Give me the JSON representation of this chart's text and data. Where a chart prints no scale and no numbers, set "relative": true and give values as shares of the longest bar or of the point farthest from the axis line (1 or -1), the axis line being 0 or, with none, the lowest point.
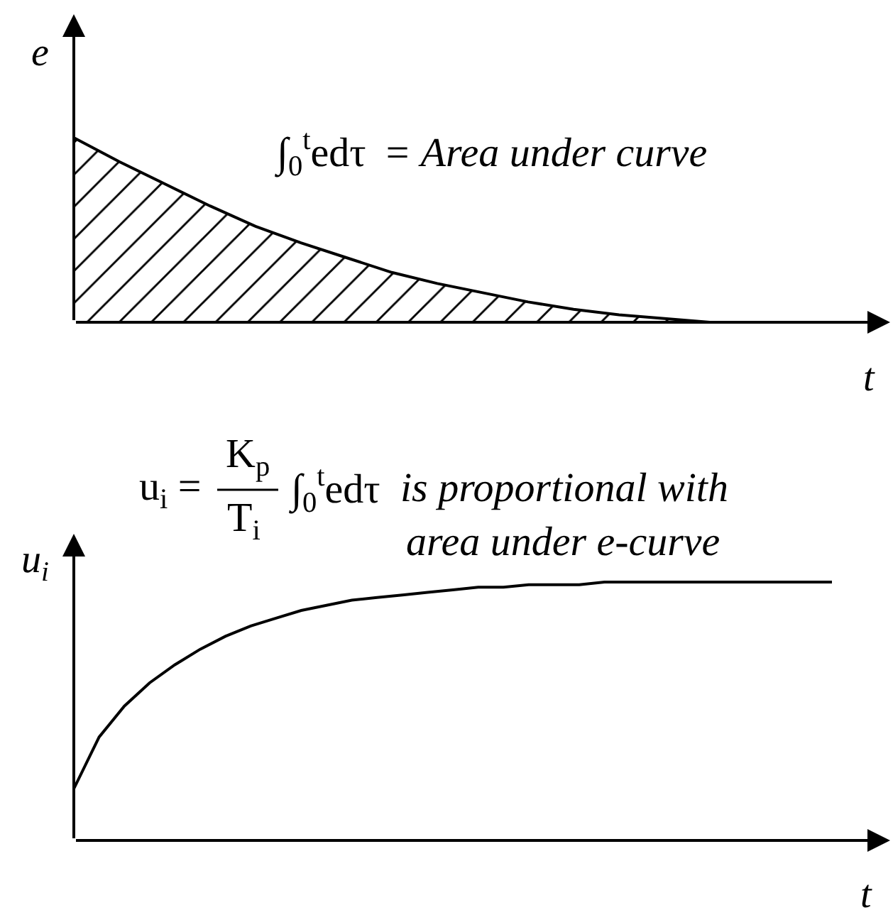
{
  "chart_data": [
    {
      "type": "area",
      "categories": [
        null,
        null,
        null,
        null,
        null,
        null,
        null,
        null,
        null,
        null,
        null,
        null,
        null,
        null,
        null,
        null,
        null
      ],
      "values": [
        1,
        0.87,
        0.75,
        0.63,
        0.52,
        0.43,
        0.35,
        0.27,
        0.21,
        0.16,
        0.11,
        0.07,
        0.04,
        0.02,
        0,
        0,
        0
      ],
      "color": "#000000",
      "relative": true,
      "xlabel": "t",
      "ylabel": "e",
      "annotations": [
        "∫$_{0}$$^{t}$edτ",
        "= Area under curve"
      ]
    },
    {
      "type": "line",
      "categories": [
        null,
        null,
        null,
        null,
        null,
        null,
        null,
        null,
        null,
        null,
        null,
        null,
        null,
        null,
        null,
        null,
        null,
        null,
        null,
        null,
        null,
        null,
        null,
        null,
        null,
        null,
        null,
        null,
        null,
        null,
        null
      ],
      "values": [
        0.2,
        0.4,
        0.52,
        0.61,
        0.68,
        0.74,
        0.79,
        0.83,
        0.86,
        0.89,
        0.91,
        0.93,
        0.94,
        0.95,
        0.96,
        0.97,
        0.98,
        0.98,
        0.99,
        0.99,
        0.99,
        1,
        1,
        1,
        1,
        1,
        1,
        1,
        1,
        1,
        1
      ],
      "color": "#000000",
      "relative": true,
      "xlabel": "t",
      "ylabel": "u$_{i}$",
      "annotations": [
        "u$_{i}$ =",
        "K$_{p}$",
        "T$_{i}$",
        "∫$_{0}$$^{t}$edτ",
        "is proportional with",
        "area under e-curve"
      ]
    }
  ]
}
